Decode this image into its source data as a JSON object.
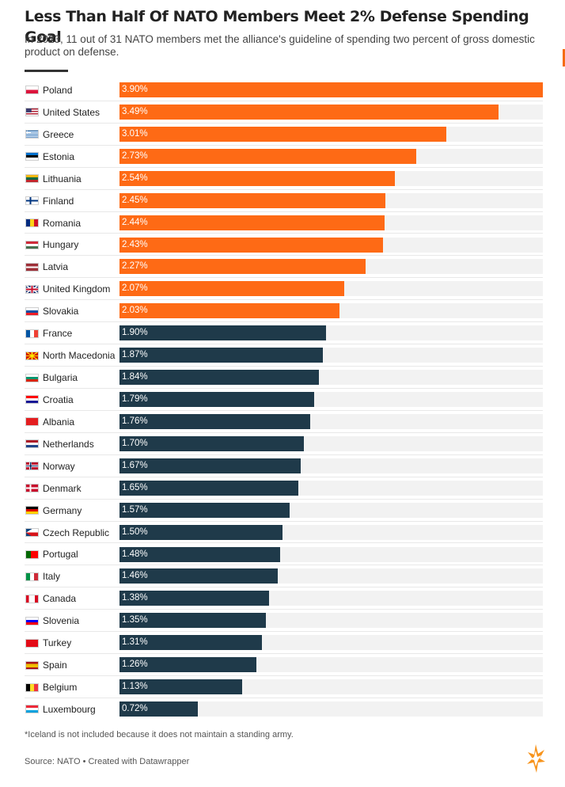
{
  "title": "Less Than Half Of NATO Members Meet 2% Defense Spending Goal",
  "subtitle": "In 2023, 11 out of 31 NATO members met the alliance's guideline of spending two percent of gross domestic product on defense.",
  "footnote": "*Iceland is not included because it does not maintain a standing army.",
  "source": "Source: NATO • Created with Datawrapper",
  "colors": {
    "above_goal": "#fe6a15",
    "below_goal": "#1f3a4a",
    "track": "#f2f2f2",
    "accent": "#f56b0f"
  },
  "logo_icon": "flame-logo-icon",
  "chart_data": {
    "type": "bar",
    "orientation": "horizontal",
    "title": "Less Than Half Of NATO Members Meet 2% Defense Spending Goal",
    "xlabel": "",
    "ylabel": "",
    "xlim": [
      0,
      3.9
    ],
    "grid": false,
    "threshold": 2.0,
    "categories": [
      "Poland",
      "United States",
      "Greece",
      "Estonia",
      "Lithuania",
      "Finland",
      "Romania",
      "Hungary",
      "Latvia",
      "United Kingdom",
      "Slovakia",
      "France",
      "North Macedonia",
      "Bulgaria",
      "Croatia",
      "Albania",
      "Netherlands",
      "Norway",
      "Denmark",
      "Germany",
      "Czech Republic",
      "Portugal",
      "Italy",
      "Canada",
      "Slovenia",
      "Turkey",
      "Spain",
      "Belgium",
      "Luxembourg"
    ],
    "values": [
      3.9,
      3.49,
      3.01,
      2.73,
      2.54,
      2.45,
      2.44,
      2.43,
      2.27,
      2.07,
      2.03,
      1.9,
      1.87,
      1.84,
      1.79,
      1.76,
      1.7,
      1.67,
      1.65,
      1.57,
      1.5,
      1.48,
      1.46,
      1.38,
      1.35,
      1.31,
      1.26,
      1.13,
      0.72
    ],
    "labels": [
      "3.90%",
      "3.49%",
      "3.01%",
      "2.73%",
      "2.54%",
      "2.45%",
      "2.44%",
      "2.43%",
      "2.27%",
      "2.07%",
      "2.03%",
      "1.90%",
      "1.87%",
      "1.84%",
      "1.79%",
      "1.76%",
      "1.70%",
      "1.67%",
      "1.65%",
      "1.57%",
      "1.50%",
      "1.48%",
      "1.46%",
      "1.38%",
      "1.35%",
      "1.31%",
      "1.26%",
      "1.13%",
      "0.72%"
    ],
    "flags": [
      {
        "type": "h",
        "colors": [
          "#ffffff",
          "#dc143c"
        ]
      },
      {
        "type": "us"
      },
      {
        "type": "gr"
      },
      {
        "type": "h",
        "colors": [
          "#0072ce",
          "#000000",
          "#ffffff"
        ]
      },
      {
        "type": "h",
        "colors": [
          "#fdb913",
          "#006a44",
          "#c1272d"
        ]
      },
      {
        "type": "nordic",
        "colors": [
          "#ffffff",
          "#003580"
        ]
      },
      {
        "type": "v",
        "colors": [
          "#002b7f",
          "#fcd116",
          "#ce1126"
        ]
      },
      {
        "type": "h",
        "colors": [
          "#ce2939",
          "#ffffff",
          "#477050"
        ]
      },
      {
        "type": "lv"
      },
      {
        "type": "uk"
      },
      {
        "type": "h",
        "colors": [
          "#ffffff",
          "#0b4ea2",
          "#ee1c25"
        ]
      },
      {
        "type": "v",
        "colors": [
          "#0055a4",
          "#ffffff",
          "#ef4135"
        ]
      },
      {
        "type": "sun",
        "colors": [
          "#d20000",
          "#ffe600"
        ]
      },
      {
        "type": "h",
        "colors": [
          "#ffffff",
          "#00966e",
          "#d62612"
        ]
      },
      {
        "type": "h",
        "colors": [
          "#ff0000",
          "#ffffff",
          "#171796"
        ]
      },
      {
        "type": "solid",
        "colors": [
          "#e41e20",
          "#000000"
        ]
      },
      {
        "type": "h",
        "colors": [
          "#ae1c28",
          "#ffffff",
          "#21468b"
        ]
      },
      {
        "type": "nordic2",
        "colors": [
          "#ba0c2f",
          "#ffffff",
          "#00205b"
        ]
      },
      {
        "type": "nordic",
        "colors": [
          "#c8102e",
          "#ffffff"
        ]
      },
      {
        "type": "h",
        "colors": [
          "#000000",
          "#dd0000",
          "#ffce00"
        ]
      },
      {
        "type": "cz"
      },
      {
        "type": "pt"
      },
      {
        "type": "v",
        "colors": [
          "#009246",
          "#ffffff",
          "#ce2b37"
        ]
      },
      {
        "type": "ca"
      },
      {
        "type": "h",
        "colors": [
          "#ffffff",
          "#0000ff",
          "#ff0000"
        ]
      },
      {
        "type": "solid",
        "colors": [
          "#e30a17",
          "#ffffff"
        ]
      },
      {
        "type": "es"
      },
      {
        "type": "v",
        "colors": [
          "#000000",
          "#fdda24",
          "#ef3340"
        ]
      },
      {
        "type": "h",
        "colors": [
          "#ed2939",
          "#ffffff",
          "#00a1de"
        ]
      }
    ]
  }
}
